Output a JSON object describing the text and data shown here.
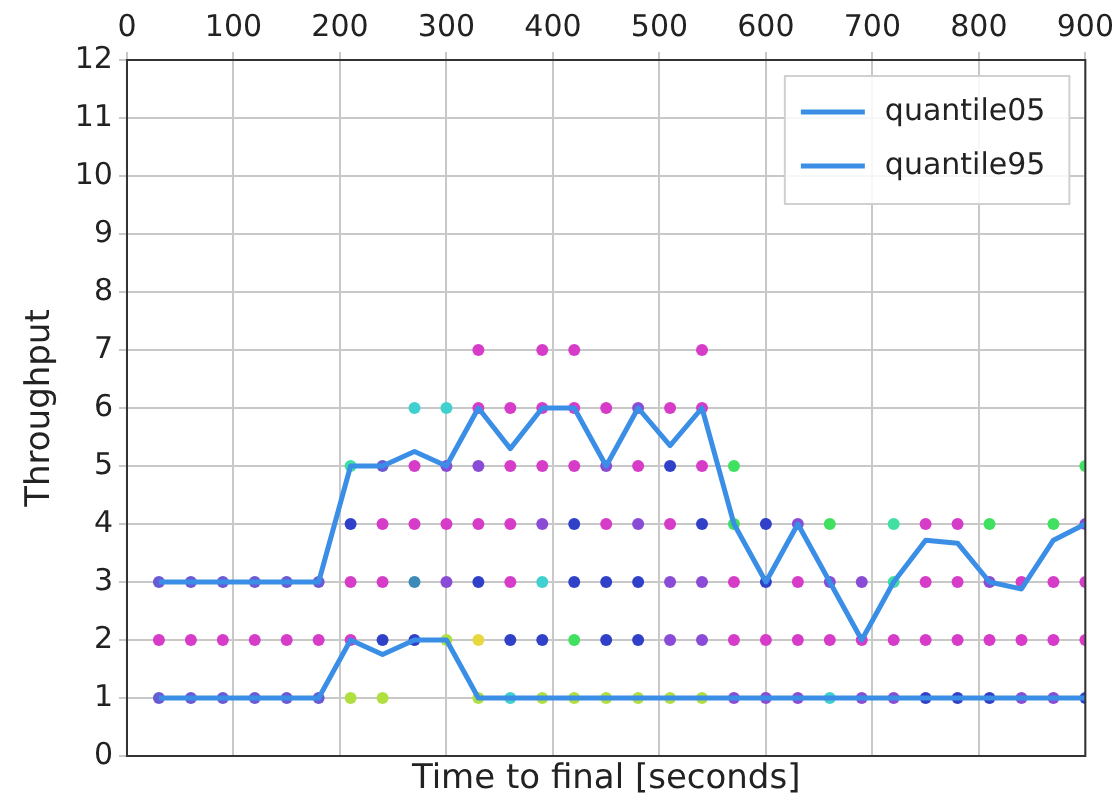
{
  "chart_data": {
    "type": "scatter",
    "xlabel": "Time to final [seconds]",
    "ylabel": "Throughput",
    "xlim": [
      0,
      900
    ],
    "xticks": [
      0,
      100,
      200,
      300,
      400,
      500,
      600,
      700,
      800,
      900
    ],
    "ylim": [
      0,
      12
    ],
    "yticks": [
      0,
      1,
      2,
      3,
      4,
      5,
      6,
      7,
      8,
      9,
      10,
      11,
      12
    ],
    "grid": true,
    "legend": "top right",
    "marker": "circle",
    "series": [
      {
        "x": [
          30,
          30,
          30,
          60,
          60,
          60,
          90,
          90,
          90,
          120,
          120,
          120,
          150,
          150,
          150,
          180,
          180,
          180,
          210,
          210,
          210,
          210,
          210,
          240,
          240,
          240,
          240,
          240,
          270,
          270,
          270,
          270,
          270,
          300,
          300,
          300,
          300,
          300,
          330,
          330,
          330,
          330,
          330,
          330,
          330,
          360,
          360,
          360,
          360,
          360,
          360,
          390,
          390,
          390,
          390,
          390,
          390,
          390,
          420,
          420,
          420,
          420,
          420,
          420,
          420,
          450,
          450,
          450,
          450,
          450,
          450,
          480,
          480,
          480,
          480,
          480,
          480,
          510,
          510,
          510,
          510,
          510,
          510,
          540,
          540,
          540,
          540,
          540,
          540,
          540,
          570,
          570,
          570,
          570,
          570,
          600,
          600,
          600,
          600,
          630,
          630,
          630,
          630,
          660,
          660,
          660,
          660,
          690,
          690,
          690,
          720,
          720,
          720,
          720,
          750,
          750,
          750,
          750,
          780,
          780,
          780,
          780,
          810,
          810,
          810,
          810,
          840,
          840,
          840,
          870,
          870,
          870,
          870,
          900,
          900,
          900,
          900,
          900
        ],
        "values": [
          1,
          2,
          3,
          1,
          2,
          3,
          1,
          2,
          3,
          1,
          2,
          3,
          1,
          2,
          3,
          1,
          2,
          3,
          1,
          2,
          3,
          4,
          5,
          1,
          2,
          3,
          4,
          5,
          2,
          3,
          4,
          5,
          6,
          2,
          3,
          4,
          5,
          6,
          1,
          2,
          3,
          4,
          5,
          6,
          7,
          1,
          2,
          3,
          4,
          5,
          6,
          1,
          2,
          3,
          4,
          5,
          6,
          7,
          1,
          2,
          3,
          4,
          5,
          6,
          7,
          1,
          2,
          3,
          4,
          5,
          6,
          1,
          2,
          3,
          4,
          5,
          6,
          1,
          2,
          3,
          4,
          5,
          6,
          1,
          2,
          3,
          4,
          5,
          6,
          7,
          1,
          2,
          3,
          4,
          5,
          1,
          2,
          3,
          4,
          1,
          2,
          3,
          4,
          1,
          2,
          3,
          4,
          1,
          2,
          3,
          1,
          2,
          3,
          4,
          1,
          2,
          3,
          4,
          1,
          2,
          3,
          4,
          1,
          2,
          3,
          4,
          1,
          2,
          3,
          1,
          2,
          3,
          4,
          1,
          2,
          3,
          4,
          5
        ],
        "colors": [
          "#6a5ad6",
          "#d63cc8",
          "#6a5ad6",
          "#6a5ad6",
          "#d63cc8",
          "#6a5ad6",
          "#6a5ad6",
          "#d63cc8",
          "#6a5ad6",
          "#6a5ad6",
          "#d63cc8",
          "#6a5ad6",
          "#6a5ad6",
          "#d63cc8",
          "#6a5ad6",
          "#6a5ad6",
          "#d63cc8",
          "#6a5ad6",
          "#b0e040",
          "#d63cc8",
          "#d63cc8",
          "#3040c8",
          "#40e0a0",
          "#b0e040",
          "#3040c8",
          "#d63cc8",
          "#d63cc8",
          "#6a5ad6",
          "#3040c8",
          "#3c8ab8",
          "#d63cc8",
          "#d63cc8",
          "#40d0d0",
          "#b0e040",
          "#8a4cd6",
          "#d63cc8",
          "#8a4cd6",
          "#40d0d0",
          "#b0e040",
          "#e8d840",
          "#3040c8",
          "#d63cc8",
          "#8a4cd6",
          "#d63cc8",
          "#d63cc8",
          "#40d0d0",
          "#3040c8",
          "#d63cc8",
          "#d63cc8",
          "#d63cc8",
          "#d63cc8",
          "#b0e040",
          "#3040c8",
          "#40d0d0",
          "#8a4cd6",
          "#d63cc8",
          "#d63cc8",
          "#d63cc8",
          "#b0e040",
          "#40e060",
          "#3040c8",
          "#3040c8",
          "#d63cc8",
          "#d63cc8",
          "#d63cc8",
          "#b0e040",
          "#3040c8",
          "#3040c8",
          "#d63cc8",
          "#8a4cd6",
          "#d63cc8",
          "#b0e040",
          "#3040c8",
          "#3040c8",
          "#8a4cd6",
          "#d63cc8",
          "#8a4cd6",
          "#b0e040",
          "#8a4cd6",
          "#8a4cd6",
          "#d63cc8",
          "#3040c8",
          "#d63cc8",
          "#b0e040",
          "#8a4cd6",
          "#8a4cd6",
          "#3040c8",
          "#d63cc8",
          "#d63cc8",
          "#d63cc8",
          "#8a4cd6",
          "#d63cc8",
          "#d63cc8",
          "#40e060",
          "#40e060",
          "#8a4cd6",
          "#d63cc8",
          "#3040c8",
          "#3040c8",
          "#8a4cd6",
          "#d63cc8",
          "#d63cc8",
          "#8a4cd6",
          "#40d0d0",
          "#d63cc8",
          "#8a4cd6",
          "#40e060",
          "#8a4cd6",
          "#d63cc8",
          "#8a4cd6",
          "#8a4cd6",
          "#d63cc8",
          "#40e0a0",
          "#40e0a0",
          "#3040c8",
          "#d63cc8",
          "#d63cc8",
          "#d63cc8",
          "#3040c8",
          "#d63cc8",
          "#d63cc8",
          "#d63cc8",
          "#3040c8",
          "#d63cc8",
          "#8a4cd6",
          "#40e060",
          "#8a4cd6",
          "#d63cc8",
          "#d63cc8",
          "#8a4cd6",
          "#d63cc8",
          "#d63cc8",
          "#40e060",
          "#3040c8",
          "#d63cc8",
          "#d63cc8",
          "#8a4cd6",
          "#40e060"
        ]
      },
      {
        "type": "line",
        "name": "quantile05",
        "color": "#3a8ee6",
        "marker": "none",
        "x": [
          30,
          60,
          90,
          120,
          150,
          180,
          210,
          240,
          270,
          300,
          330,
          360,
          390,
          420,
          450,
          480,
          510,
          540,
          570,
          600,
          630,
          660,
          690,
          720,
          750,
          780,
          810,
          840,
          870,
          900
        ],
        "values": [
          1,
          1,
          1,
          1,
          1,
          1,
          2,
          1.75,
          2,
          2,
          1,
          1,
          1,
          1,
          1,
          1,
          1,
          1,
          1,
          1,
          1,
          1,
          1,
          1,
          1,
          1,
          1,
          1,
          1,
          1
        ]
      },
      {
        "type": "line",
        "name": "quantile95",
        "color": "#3a8ee6",
        "marker": "none",
        "x": [
          30,
          60,
          90,
          120,
          150,
          180,
          210,
          240,
          270,
          300,
          330,
          360,
          390,
          420,
          450,
          480,
          510,
          540,
          570,
          600,
          630,
          660,
          690,
          720,
          750,
          780,
          810,
          840,
          870,
          900
        ],
        "values": [
          3,
          3,
          3,
          3,
          3,
          3,
          5,
          5,
          5.25,
          5,
          6,
          5.3,
          6,
          6,
          5,
          6,
          5.35,
          6,
          4,
          3,
          4,
          3,
          2,
          3,
          3.72,
          3.67,
          3,
          2.88,
          3.72,
          4
        ]
      }
    ]
  }
}
